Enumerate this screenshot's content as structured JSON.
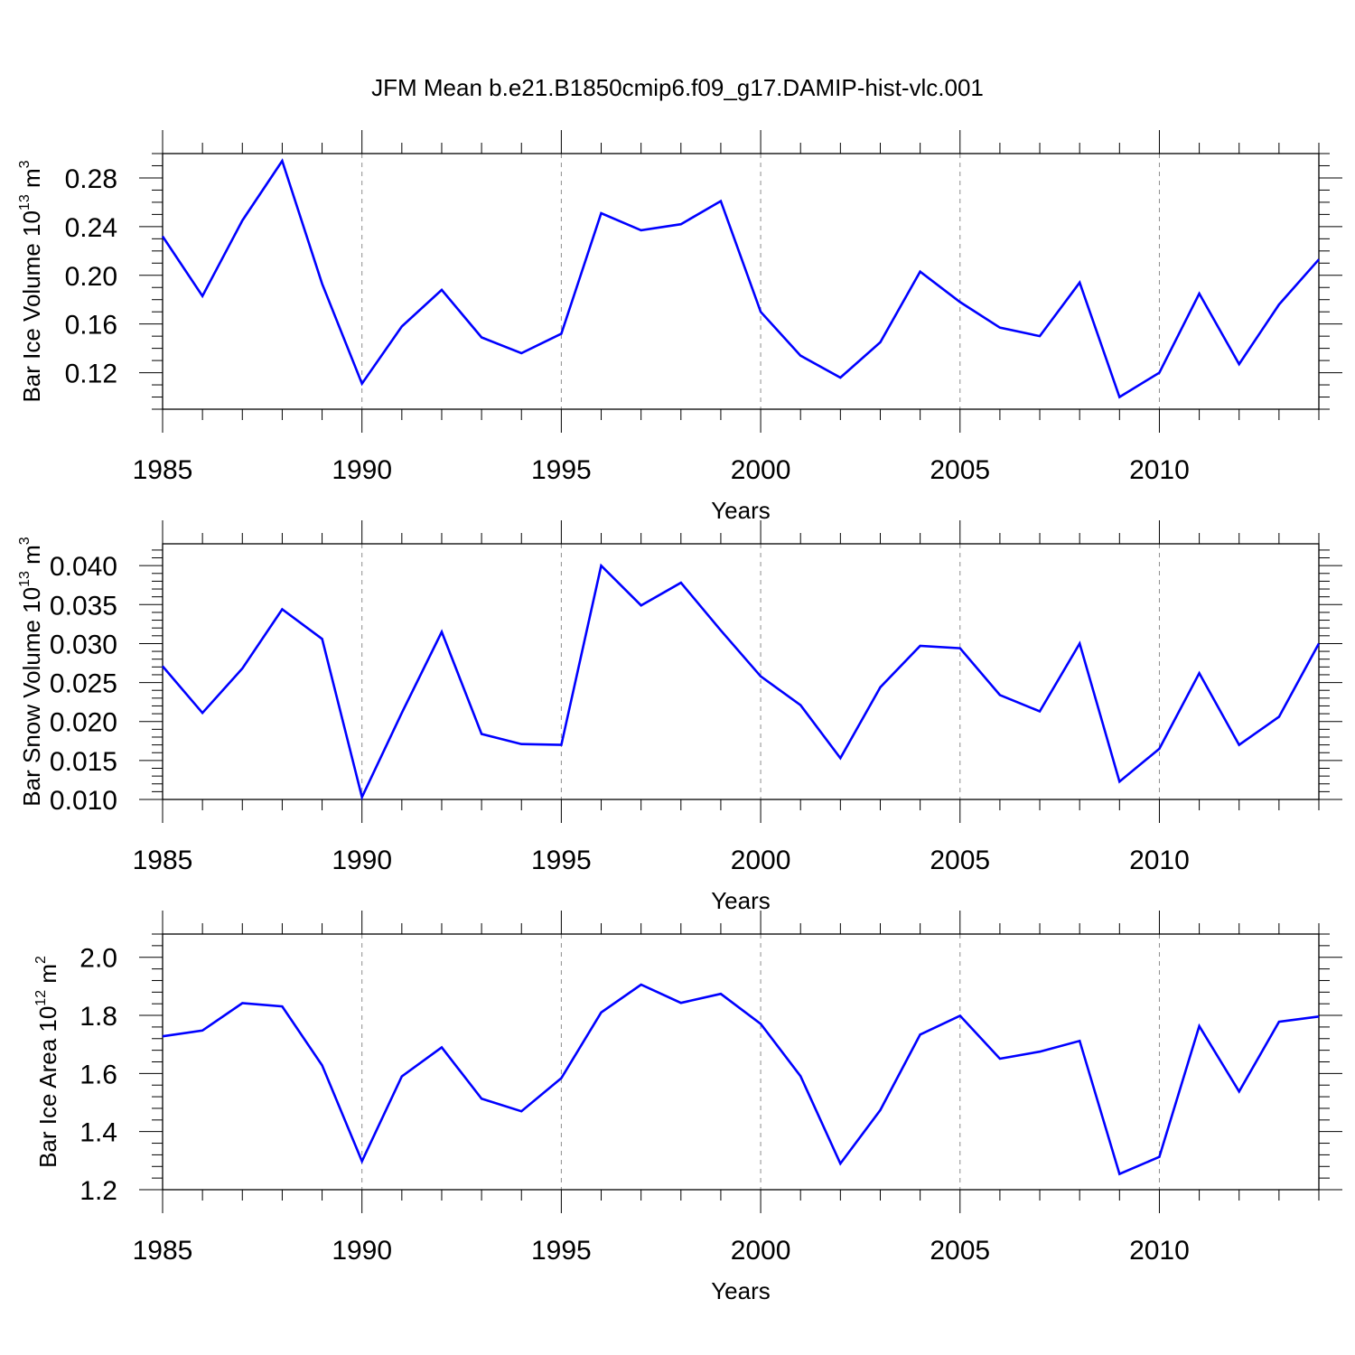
{
  "chart_data": {
    "title": "JFM Mean b.e21.B1850cmip6.f09_g17.DAMIP-hist-vlc.001",
    "line_color": "#0000ff",
    "x": [
      1985,
      1986,
      1987,
      1988,
      1989,
      1990,
      1991,
      1992,
      1993,
      1994,
      1995,
      1996,
      1997,
      1998,
      1999,
      2000,
      2001,
      2002,
      2003,
      2004,
      2005,
      2006,
      2007,
      2008,
      2009,
      2010,
      2011,
      2012,
      2013,
      2014
    ],
    "xlim": [
      1985,
      2014
    ],
    "xticks": [
      "1985",
      "1990",
      "1995",
      "2000",
      "2005",
      "2010"
    ],
    "xlabel": "Years",
    "panels": [
      {
        "type": "line",
        "ylabel_main": "Bar Ice Volume 10",
        "ylabel_exp": "13",
        "ylabel_unit": " m",
        "ylabel_unit_exp": "3",
        "ylim": [
          0.09,
          0.3
        ],
        "yticks": [
          "0.12",
          "0.16",
          "0.20",
          "0.24",
          "0.28"
        ],
        "ytick_values": [
          0.12,
          0.16,
          0.2,
          0.24,
          0.28
        ],
        "minor_step": 0.01,
        "values": [
          0.232,
          0.183,
          0.245,
          0.294,
          0.193,
          0.111,
          0.158,
          0.188,
          0.149,
          0.136,
          0.152,
          0.251,
          0.237,
          0.242,
          0.261,
          0.17,
          0.134,
          0.116,
          0.145,
          0.203,
          0.178,
          0.157,
          0.15,
          0.194,
          0.1,
          0.12,
          0.185,
          0.127,
          0.176,
          0.213
        ]
      },
      {
        "type": "line",
        "ylabel_main": "Bar Snow Volume 10",
        "ylabel_exp": "13",
        "ylabel_unit": " m",
        "ylabel_unit_exp": "3",
        "ylim": [
          0.01,
          0.0428
        ],
        "yticks": [
          "0.010",
          "0.015",
          "0.020",
          "0.025",
          "0.030",
          "0.035",
          "0.040"
        ],
        "ytick_values": [
          0.01,
          0.015,
          0.02,
          0.025,
          0.03,
          0.035,
          0.04
        ],
        "minor_step": 0.001,
        "values": [
          0.0271,
          0.0211,
          0.0268,
          0.0344,
          0.0306,
          0.0103,
          0.0211,
          0.0315,
          0.0184,
          0.0171,
          0.017,
          0.04,
          0.0349,
          0.0378,
          0.0317,
          0.0258,
          0.0221,
          0.0153,
          0.0244,
          0.0297,
          0.0294,
          0.0234,
          0.0213,
          0.03,
          0.0123,
          0.0165,
          0.0262,
          0.017,
          0.0206,
          0.03
        ]
      },
      {
        "type": "line",
        "ylabel_main": "Bar Ice Area 10",
        "ylabel_exp": "12",
        "ylabel_unit": " m",
        "ylabel_unit_exp": "2",
        "ylim": [
          1.2,
          2.08
        ],
        "yticks": [
          "1.2",
          "1.4",
          "1.6",
          "1.8",
          "2.0"
        ],
        "ytick_values": [
          1.2,
          1.4,
          1.6,
          1.8,
          2.0
        ],
        "minor_step": 0.04,
        "values": [
          1.728,
          1.748,
          1.842,
          1.831,
          1.628,
          1.298,
          1.59,
          1.69,
          1.513,
          1.47,
          1.584,
          1.81,
          1.906,
          1.843,
          1.874,
          1.771,
          1.591,
          1.29,
          1.474,
          1.734,
          1.799,
          1.651,
          1.675,
          1.712,
          1.254,
          1.313,
          1.763,
          1.538,
          1.778,
          1.796
        ]
      }
    ]
  }
}
